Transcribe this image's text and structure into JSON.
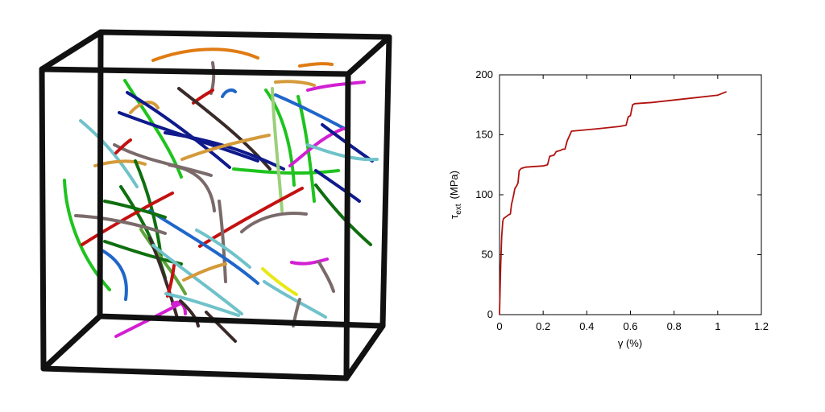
{
  "figure": {
    "left_panel": "dislocation-network-in-simulation-box",
    "right_panel": "stress-strain-curve"
  },
  "chart_data": {
    "type": "line",
    "xlabel": "γ (%)",
    "ylabel_main": "τ",
    "ylabel_sub": "ext",
    "ylabel_unit": "(MPa)",
    "xlim": [
      0,
      1.2
    ],
    "ylim": [
      0,
      200
    ],
    "xticks": [
      0,
      0.2,
      0.4,
      0.6,
      0.8,
      1,
      1.2
    ],
    "xtick_labels": [
      "0",
      "0.2",
      "0.4",
      "0.6",
      "0.8",
      "1",
      "1.2"
    ],
    "yticks": [
      0,
      50,
      100,
      150,
      200
    ],
    "ytick_labels": [
      "0",
      "50",
      "100",
      "150",
      "200"
    ],
    "grid": false,
    "series": [
      {
        "color": "#b0120f",
        "x": [
          0,
          0.005,
          0.01,
          0.015,
          0.018,
          0.025,
          0.04,
          0.05,
          0.055,
          0.06,
          0.065,
          0.07,
          0.08,
          0.085,
          0.09,
          0.1,
          0.12,
          0.2,
          0.22,
          0.23,
          0.25,
          0.26,
          0.28,
          0.29,
          0.3,
          0.31,
          0.33,
          0.45,
          0.55,
          0.58,
          0.59,
          0.6,
          0.61,
          0.62,
          0.7,
          0.8,
          0.9,
          1.0,
          1.04
        ],
        "y": [
          0,
          40,
          65,
          78,
          80,
          81,
          83,
          84,
          92,
          96,
          100,
          105,
          108,
          110,
          120,
          122,
          123,
          124,
          125,
          132,
          133,
          136,
          137,
          138,
          138,
          145,
          153,
          155,
          157,
          158,
          165,
          166,
          175,
          176,
          177,
          179,
          181,
          183,
          186
        ]
      }
    ]
  },
  "colors": {
    "box_frame": "#111111",
    "curve": "#b0120f",
    "dislocation_palette": [
      "#e07b12",
      "#d49a3a",
      "#1ec31e",
      "#0f6f0f",
      "#0f1a8c",
      "#1f66c9",
      "#6fc2c9",
      "#5fa33a",
      "#7a6a6a",
      "#c41010",
      "#d21fd2",
      "#e8e816",
      "#3a2a2a",
      "#9bd07a"
    ]
  }
}
